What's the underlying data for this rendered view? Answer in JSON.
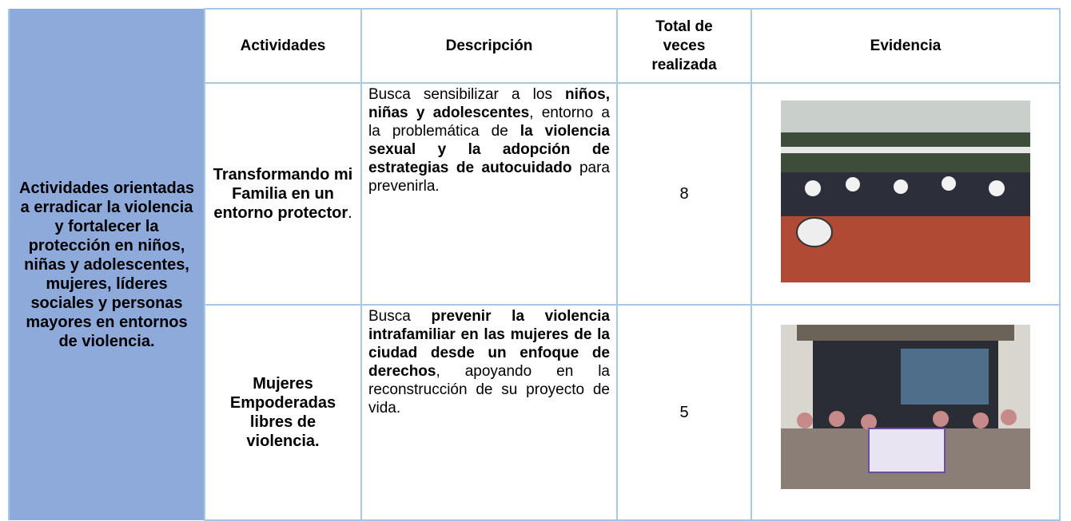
{
  "side_label": "Actividades orientadas a erradicar la violencia y fortalecer la protección en niños, niñas y adolescentes, mujeres, líderes sociales y personas mayores en entornos de violencia.",
  "table": {
    "headers": [
      "Actividades",
      "Descripción",
      "Total de veces realizada",
      "Evidencia"
    ],
    "rows": [
      {
        "activity": [
          {
            "text": "Transformando mi Familia en un entorno protector",
            "bold": true
          },
          {
            "text": ".",
            "bold": false
          }
        ],
        "description": [
          {
            "text": "Busca sensibilizar a los ",
            "bold": false
          },
          {
            "text": "niños, niñas y adolescentes",
            "bold": true
          },
          {
            "text": ", entorno a la problemática de ",
            "bold": false
          },
          {
            "text": "la violencia sexual y la adopción de estrategias de autocuidado",
            "bold": true
          },
          {
            "text": " para prevenirla.",
            "bold": false
          }
        ],
        "total": 8
      },
      {
        "activity": [
          {
            "text": "Mujeres Empoderadas libres de violencia.",
            "bold": true
          }
        ],
        "description": [
          {
            "text": "Busca ",
            "bold": false
          },
          {
            "text": "prevenir la violencia intrafamiliar en las mujeres de la ciudad desde un enfoque de derechos",
            "bold": true
          },
          {
            "text": ", apoyando en la reconstrucción de su proyecto de vida.",
            "bold": false
          }
        ],
        "total": 5
      }
    ]
  }
}
